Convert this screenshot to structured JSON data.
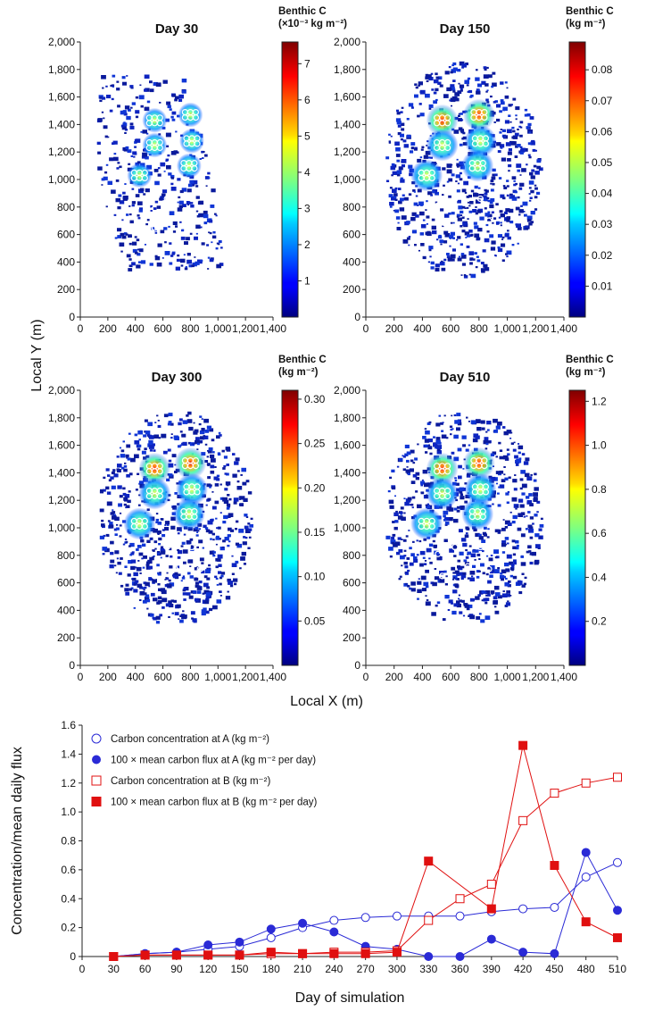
{
  "chart_data": [
    {
      "type": "heatmap",
      "title": "Day 30",
      "colorbar_title": [
        "Benthic C",
        "(×10⁻³ kg m⁻²)"
      ],
      "colorbar_ticks": [
        "1",
        "2",
        "3",
        "4",
        "5",
        "6",
        "7"
      ],
      "colorbar_values": [
        1,
        2,
        3,
        4,
        5,
        6,
        7
      ],
      "colorbar_range": [
        0,
        7.6
      ],
      "xlim": [
        0,
        1400
      ],
      "ylim": [
        0,
        2000
      ],
      "x_ticks": [
        "0",
        "200",
        "400",
        "600",
        "800",
        "1,000",
        "1,200",
        "1,400"
      ],
      "y_ticks": [
        "0",
        "200",
        "400",
        "600",
        "800",
        "1,000",
        "1,200",
        "1,400",
        "1,600",
        "1,800",
        "2,000"
      ]
    },
    {
      "type": "heatmap",
      "title": "Day 150",
      "colorbar_title": [
        "Benthic C",
        "(kg m⁻²)"
      ],
      "colorbar_ticks": [
        "0.01",
        "0.02",
        "0.03",
        "0.04",
        "0.05",
        "0.06",
        "0.07",
        "0.08"
      ],
      "colorbar_values": [
        0.01,
        0.02,
        0.03,
        0.04,
        0.05,
        0.06,
        0.07,
        0.08
      ],
      "colorbar_range": [
        0,
        0.089
      ],
      "xlim": [
        0,
        1400
      ],
      "ylim": [
        0,
        2000
      ],
      "x_ticks": [
        "0",
        "200",
        "400",
        "600",
        "800",
        "1,000",
        "1,200",
        "1,400"
      ],
      "y_ticks": [
        "0",
        "200",
        "400",
        "600",
        "800",
        "1,000",
        "1,200",
        "1,400",
        "1,600",
        "1,800",
        "2,000"
      ]
    },
    {
      "type": "heatmap",
      "title": "Day 300",
      "colorbar_title": [
        "Benthic C",
        "(kg m⁻²)"
      ],
      "colorbar_ticks": [
        "0.05",
        "0.10",
        "0.15",
        "0.20",
        "0.25",
        "0.30"
      ],
      "colorbar_values": [
        0.05,
        0.1,
        0.15,
        0.2,
        0.25,
        0.3
      ],
      "colorbar_range": [
        0,
        0.31
      ],
      "xlim": [
        0,
        1400
      ],
      "ylim": [
        0,
        2000
      ],
      "x_ticks": [
        "0",
        "200",
        "400",
        "600",
        "800",
        "1,000",
        "1,200",
        "1,400"
      ],
      "y_ticks": [
        "0",
        "200",
        "400",
        "600",
        "800",
        "1,000",
        "1,200",
        "1,400",
        "1,600",
        "1,800",
        "2,000"
      ]
    },
    {
      "type": "heatmap",
      "title": "Day 510",
      "colorbar_title": [
        "Benthic C",
        "(kg m⁻²)"
      ],
      "colorbar_ticks": [
        "0.2",
        "0.4",
        "0.6",
        "0.8",
        "1.0",
        "1.2"
      ],
      "colorbar_values": [
        0.2,
        0.4,
        0.6,
        0.8,
        1.0,
        1.2
      ],
      "colorbar_range": [
        0,
        1.25
      ],
      "xlim": [
        0,
        1400
      ],
      "ylim": [
        0,
        2000
      ],
      "x_ticks": [
        "0",
        "200",
        "400",
        "600",
        "800",
        "1,000",
        "1,200",
        "1,400"
      ],
      "y_ticks": [
        "0",
        "200",
        "400",
        "600",
        "800",
        "1,000",
        "1,200",
        "1,400",
        "1,600",
        "1,800",
        "2,000"
      ]
    },
    {
      "type": "line",
      "xlabel": "Day of simulation",
      "ylabel": "Concentration/mean daily flux",
      "x": [
        30,
        60,
        90,
        120,
        150,
        180,
        210,
        240,
        270,
        300,
        330,
        360,
        390,
        420,
        450,
        480,
        510
      ],
      "x_ticks": [
        "0",
        "30",
        "60",
        "90",
        "120",
        "150",
        "180",
        "210",
        "240",
        "270",
        "300",
        "330",
        "360",
        "390",
        "420",
        "450",
        "480",
        "510"
      ],
      "xlim": [
        0,
        510
      ],
      "y_ticks": [
        "0",
        "0.2",
        "0.4",
        "0.6",
        "0.8",
        "1.0",
        "1.2",
        "1.4",
        "1.6"
      ],
      "ylim": [
        0,
        1.6
      ],
      "series": [
        {
          "name": "Carbon concentration at A (kg m⁻²)",
          "color": "#2a2ad6",
          "marker": "circle-open",
          "values": [
            0.0,
            0.02,
            0.03,
            0.05,
            0.07,
            0.13,
            0.2,
            0.25,
            0.27,
            0.28,
            0.28,
            0.28,
            0.31,
            0.33,
            0.34,
            0.55,
            0.65
          ]
        },
        {
          "name": "100 × mean carbon flux at A (kg m⁻² per day)",
          "color": "#2a2ad6",
          "marker": "circle-filled",
          "values": [
            0.0,
            0.02,
            0.03,
            0.08,
            0.1,
            0.19,
            0.23,
            0.17,
            0.07,
            0.05,
            0.0,
            0.0,
            0.12,
            0.03,
            0.02,
            0.72,
            0.32
          ]
        },
        {
          "name": "Carbon concentration at B (kg m⁻²)",
          "color": "#e01010",
          "marker": "square-open",
          "values": [
            0.0,
            0.01,
            0.01,
            0.01,
            0.01,
            0.02,
            0.02,
            0.03,
            0.03,
            0.04,
            0.25,
            0.4,
            0.5,
            0.94,
            1.13,
            1.2,
            1.24
          ]
        },
        {
          "name": "100 × mean carbon flux at B (kg m⁻² per day)",
          "color": "#e01010",
          "marker": "square-filled",
          "values": [
            0.0,
            0.01,
            0.01,
            0.01,
            0.01,
            0.03,
            0.02,
            0.02,
            0.02,
            0.03,
            0.66,
            null,
            0.33,
            1.46,
            0.63,
            0.24,
            0.13
          ]
        }
      ]
    }
  ],
  "shared_labels": {
    "y_axis_top": "Local Y (m)",
    "x_axis_top": "Local X (m)"
  }
}
